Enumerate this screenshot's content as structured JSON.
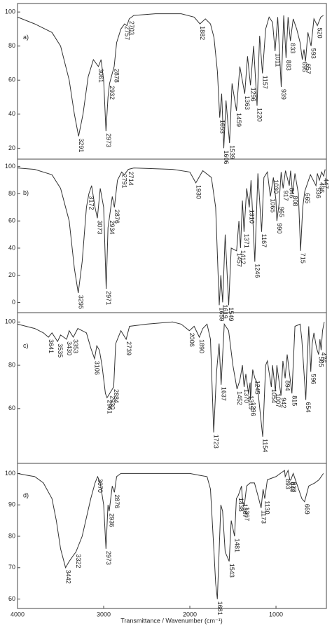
{
  "chart_data": [
    {
      "type": "line",
      "label": "a)",
      "color": "#333",
      "xlim": [
        4000,
        415
      ],
      "ylim": [
        14,
        105
      ],
      "yticks": [
        20,
        40,
        60,
        80,
        100
      ],
      "x": [
        4000,
        3800,
        3600,
        3500,
        3400,
        3340,
        3291,
        3240,
        3180,
        3120,
        3061,
        3030,
        3000,
        2973,
        2950,
        2932,
        2900,
        2878,
        2850,
        2800,
        2757,
        2730,
        2703,
        2650,
        2400,
        2100,
        1950,
        1882,
        1820,
        1760,
        1720,
        1680,
        1653,
        1630,
        1606,
        1580,
        1539,
        1510,
        1459,
        1420,
        1363,
        1330,
        1296,
        1260,
        1220,
        1190,
        1157,
        1120,
        1080,
        1040,
        1011,
        980,
        939,
        910,
        883,
        860,
        833,
        800,
        760,
        720,
        695,
        675,
        657,
        630,
        593,
        560,
        520,
        480,
        450
      ],
      "values": [
        97,
        93,
        88,
        80,
        60,
        40,
        27,
        40,
        62,
        72,
        68,
        72,
        60,
        30,
        50,
        58,
        64,
        68,
        82,
        90,
        93,
        92,
        96,
        98,
        99,
        99,
        97,
        93,
        96,
        93,
        85,
        65,
        38,
        52,
        20,
        48,
        23,
        58,
        42,
        68,
        52,
        74,
        57,
        80,
        45,
        86,
        64,
        90,
        97,
        94,
        77,
        97,
        56,
        98,
        73,
        97,
        83,
        96,
        90,
        82,
        72,
        78,
        71,
        88,
        80,
        96,
        92,
        97,
        98
      ],
      "peaks": [
        3291,
        3061,
        2973,
        2932,
        2878,
        2757,
        2703,
        1882,
        1653,
        1606,
        1539,
        1459,
        1363,
        1296,
        1220,
        1157,
        1011,
        939,
        883,
        833,
        695,
        657,
        593,
        520
      ]
    },
    {
      "type": "line",
      "label": "b)",
      "color": "#333",
      "xlim": [
        4000,
        415
      ],
      "ylim": [
        -7,
        105
      ],
      "yticks": [
        0,
        20,
        40,
        60,
        80,
        100
      ],
      "x": [
        4000,
        3800,
        3600,
        3500,
        3400,
        3340,
        3295,
        3250,
        3200,
        3172,
        3140,
        3100,
        3073,
        3040,
        3000,
        2971,
        2950,
        2934,
        2900,
        2876,
        2840,
        2791,
        2760,
        2714,
        2650,
        2200,
        2000,
        1930,
        1850,
        1750,
        1700,
        1659,
        1640,
        1619,
        1590,
        1549,
        1520,
        1457,
        1430,
        1412,
        1390,
        1371,
        1340,
        1310,
        1290,
        1246,
        1210,
        1167,
        1140,
        1100,
        1065,
        1030,
        1000,
        990,
        965,
        940,
        917,
        890,
        846,
        830,
        808,
        780,
        740,
        715,
        690,
        665,
        600,
        536,
        520,
        496,
        470,
        447,
        430
      ],
      "values": [
        99,
        98,
        94,
        84,
        60,
        25,
        7,
        30,
        70,
        80,
        86,
        70,
        62,
        84,
        70,
        10,
        55,
        62,
        78,
        70,
        90,
        96,
        94,
        98,
        99,
        98,
        96,
        88,
        97,
        92,
        70,
        -2,
        20,
        0,
        50,
        -2,
        40,
        38,
        60,
        40,
        75,
        52,
        84,
        70,
        90,
        30,
        95,
        52,
        92,
        96,
        78,
        92,
        75,
        60,
        72,
        96,
        84,
        97,
        86,
        97,
        80,
        95,
        80,
        38,
        70,
        82,
        94,
        86,
        95,
        90,
        96,
        93,
        98
      ],
      "peaks": [
        3295,
        3172,
        3073,
        2971,
        2934,
        2876,
        2791,
        2714,
        1930,
        1659,
        1619,
        1549,
        1457,
        1412,
        1371,
        1310,
        1246,
        1167,
        1065,
        1030,
        990,
        965,
        917,
        846,
        808,
        715,
        665,
        536,
        496,
        447
      ]
    },
    {
      "type": "line",
      "label": "c)",
      "color": "#333",
      "xlim": [
        4000,
        415
      ],
      "ylim": [
        35,
        104
      ],
      "yticks": [
        60,
        80,
        100
      ],
      "x": [
        4000,
        3900,
        3800,
        3700,
        3641,
        3600,
        3535,
        3500,
        3430,
        3400,
        3353,
        3300,
        3200,
        3150,
        3106,
        3080,
        3050,
        3020,
        2980,
        2961,
        2930,
        2884,
        2860,
        2800,
        2739,
        2700,
        2500,
        2200,
        2100,
        2006,
        1950,
        1890,
        1850,
        1800,
        1760,
        1723,
        1690,
        1660,
        1637,
        1600,
        1550,
        1500,
        1452,
        1420,
        1390,
        1370,
        1350,
        1319,
        1300,
        1296,
        1270,
        1245,
        1220,
        1154,
        1120,
        1100,
        1054,
        1040,
        1007,
        990,
        942,
        920,
        894,
        870,
        815,
        780,
        720,
        700,
        654,
        640,
        620,
        596,
        580,
        560,
        530,
        505,
        490,
        476,
        460,
        440
      ],
      "values": [
        99,
        98,
        97,
        95,
        93,
        95,
        91,
        94,
        92,
        96,
        93,
        97,
        95,
        88,
        83,
        89,
        87,
        80,
        67,
        65,
        67,
        70,
        90,
        96,
        92,
        98,
        99,
        100,
        99,
        96,
        98,
        93,
        97,
        99,
        92,
        49,
        77,
        90,
        71,
        99,
        96,
        80,
        69,
        73,
        80,
        70,
        76,
        67,
        72,
        64,
        78,
        74,
        72,
        47,
        80,
        82,
        70,
        80,
        68,
        80,
        66,
        82,
        74,
        85,
        67,
        98,
        99,
        92,
        64,
        80,
        98,
        77,
        90,
        95,
        88,
        85,
        92,
        87,
        96,
        100
      ],
      "peaks": [
        3641,
        3535,
        3430,
        3353,
        3106,
        2961,
        2930,
        2884,
        2739,
        2006,
        1890,
        1723,
        1637,
        1452,
        1370,
        1319,
        1296,
        1245,
        1154,
        1054,
        1007,
        942,
        894,
        815,
        654,
        596,
        505,
        476
      ]
    },
    {
      "type": "line",
      "label": "d)",
      "color": "#333",
      "xlim": [
        4000,
        415
      ],
      "ylim": [
        57,
        103
      ],
      "yticks": [
        60,
        70,
        80,
        90,
        100
      ],
      "xticks": [
        4000,
        3000,
        2000,
        1000
      ],
      "xlabel": "Transmittance / Wavenumber (cm⁻¹)",
      "x": [
        4000,
        3900,
        3800,
        3700,
        3600,
        3550,
        3500,
        3442,
        3400,
        3350,
        3322,
        3250,
        3150,
        3100,
        3070,
        3040,
        3000,
        2973,
        2950,
        2936,
        2900,
        2876,
        2850,
        2800,
        2400,
        2000,
        1900,
        1800,
        1760,
        1720,
        1700,
        1681,
        1660,
        1640,
        1620,
        1590,
        1543,
        1520,
        1481,
        1460,
        1438,
        1400,
        1387,
        1367,
        1340,
        1300,
        1250,
        1200,
        1173,
        1150,
        1130,
        1100,
        1000,
        950,
        900,
        893,
        860,
        840,
        827,
        800,
        750,
        700,
        669,
        620,
        550,
        500,
        450
      ],
      "values": [
        100,
        99.5,
        99,
        97,
        92,
        85,
        76,
        70,
        72,
        74,
        75,
        80,
        92,
        97,
        99,
        97,
        90,
        76,
        90,
        88,
        96,
        94,
        99,
        100,
        100,
        100,
        99.5,
        99,
        95,
        75,
        65,
        60,
        75,
        90,
        88,
        75,
        72,
        85,
        80,
        92,
        93,
        96,
        91,
        90,
        96,
        97,
        97,
        92,
        89,
        95,
        92,
        98,
        99,
        100,
        101,
        99,
        101,
        98,
        98,
        100,
        96,
        92,
        91,
        96,
        97,
        98,
        100
      ],
      "peaks": [
        3442,
        3322,
        3070,
        2973,
        2936,
        2876,
        1681,
        1543,
        1481,
        1438,
        1387,
        1367,
        1173,
        1130,
        893,
        840,
        827,
        669
      ]
    }
  ]
}
